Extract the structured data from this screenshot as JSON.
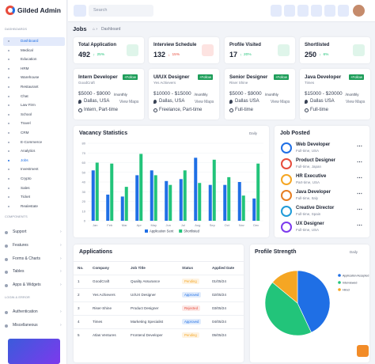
{
  "sidebar": {
    "brand": "Gilded Admin",
    "sections": [
      {
        "title": "Dashboards",
        "items": [
          "Dashboard",
          "Medical",
          "Education",
          "HRM",
          "Warehouse",
          "Restaurant",
          "Chat",
          "Law Firm",
          "School",
          "Travel",
          "CRM",
          "E-Commerce",
          "Analytics",
          "Jobs",
          "Investment",
          "Crypto",
          "Sales",
          "Ticket",
          "Realestate"
        ]
      },
      {
        "title": "Components",
        "items": [
          "Support",
          "Features",
          "Forms & Charts",
          "Tables",
          "Apps & Widgets"
        ]
      },
      {
        "title": "Login & Error",
        "items": [
          "Authentication",
          "Miscellaneous"
        ]
      }
    ]
  },
  "header": {
    "search_placeholder": "Search"
  },
  "breadcrumb": {
    "page_title": "Jobs",
    "trail": "Dashboard"
  },
  "stats": [
    {
      "label": "Total Application",
      "value": 492,
      "change": "25%",
      "trend": "up"
    },
    {
      "label": "Interview Schedule",
      "value": 132,
      "change": "15%",
      "trend": "down"
    },
    {
      "label": "Profile Visited",
      "value": 17,
      "change": "20%",
      "trend": "up"
    },
    {
      "label": "Shortlisted",
      "value": 250,
      "change": "6%",
      "trend": "up"
    }
  ],
  "jobs": [
    {
      "title": "Intern Developer",
      "company": "GoodCraft",
      "follow": "+Follow",
      "salary": "$5000 - $9000",
      "period": "/monthly",
      "location": "Dallas, USA",
      "map_link": "View Maps",
      "type": "Intern, Part-time"
    },
    {
      "title": "UI/UX Designer",
      "company": "Yes Achievers",
      "follow": "+Follow",
      "salary": "$10000 - $15000",
      "period": "/monthly",
      "location": "Dallas, USA",
      "map_link": "View Maps",
      "type": "Freelance, Part-time"
    },
    {
      "title": "Senior Designer",
      "company": "Riser Shine",
      "follow": "+Follow",
      "salary": "$5000 - $9000",
      "period": "/monthly",
      "location": "Dallas USA",
      "map_link": "View Maps",
      "type": "Full-time"
    },
    {
      "title": "Java Developer",
      "company": "Times",
      "follow": "+Follow",
      "salary": "$15000 - $20000",
      "period": "/monthly",
      "location": "Dallas USA",
      "map_link": "View Maps",
      "type": "Full-time"
    }
  ],
  "vacancy_chart": {
    "type": "bar",
    "title": "Vacancy Statistics",
    "filter": "Daily",
    "categories": [
      "Jan",
      "Feb",
      "Mar",
      "Apr",
      "May",
      "Jun",
      "Jul",
      "Aug",
      "Sep",
      "Oct",
      "Nov",
      "Dec"
    ],
    "series": [
      {
        "name": "Application Sent",
        "color": "#1f6fe5",
        "values": [
          52,
          27,
          25,
          47,
          52,
          41,
          43,
          65,
          37,
          37,
          40,
          23
        ]
      },
      {
        "name": "Shortlisted",
        "color": "#22c47a",
        "values": [
          60,
          59,
          35,
          69,
          47,
          37,
          52,
          39,
          63,
          45,
          26,
          59
        ]
      }
    ],
    "ylim": [
      0,
      80
    ],
    "yticks": [
      0,
      10,
      20,
      30,
      40,
      50,
      60,
      70,
      80
    ]
  },
  "job_posted": {
    "title": "Job Posted",
    "items": [
      {
        "title": "Web Developer",
        "detail": "Full-time, USA"
      },
      {
        "title": "Product Designer",
        "detail": "Full-time, Japan"
      },
      {
        "title": "HR Executive",
        "detail": "Part-time, USA"
      },
      {
        "title": "Java Developer",
        "detail": "Full-time, Italy"
      },
      {
        "title": "Creative Director",
        "detail": "Full-time, Spain"
      },
      {
        "title": "UX Designer",
        "detail": "Full-time, USA"
      }
    ]
  },
  "applications": {
    "title": "Applications",
    "columns": [
      "No.",
      "Company",
      "Job Title",
      "Status",
      "Applied Date"
    ],
    "rows": [
      [
        1,
        "GoodCraft",
        "Quality Assurance",
        "Pending",
        "01/05/24"
      ],
      [
        2,
        "Yes Achievers",
        "UI/UX Designer",
        "Approved",
        "02/05/24"
      ],
      [
        3,
        "Riser-Shine",
        "Product Designer",
        "Rejected",
        "03/05/24"
      ],
      [
        4,
        "Times",
        "Marketing Specialist",
        "Approved",
        "04/05/24"
      ],
      [
        5,
        "Atlas Ventures",
        "Frontend Developer",
        "Pending",
        "05/05/24"
      ]
    ],
    "status_colors": [
      "#f5a623",
      "#1f6fe5",
      "#e74c3c",
      "#1f6fe5",
      "#f5a623"
    ]
  },
  "profile_strength": {
    "type": "pie",
    "title": "Profile Strength",
    "filter": "Daily",
    "labels": [
      "Application Accepted",
      "Interviewed",
      "Hired"
    ],
    "values": [
      43,
      43,
      14
    ],
    "colors": [
      "#1f6fe5",
      "#22c47a",
      "#f5a623"
    ]
  }
}
